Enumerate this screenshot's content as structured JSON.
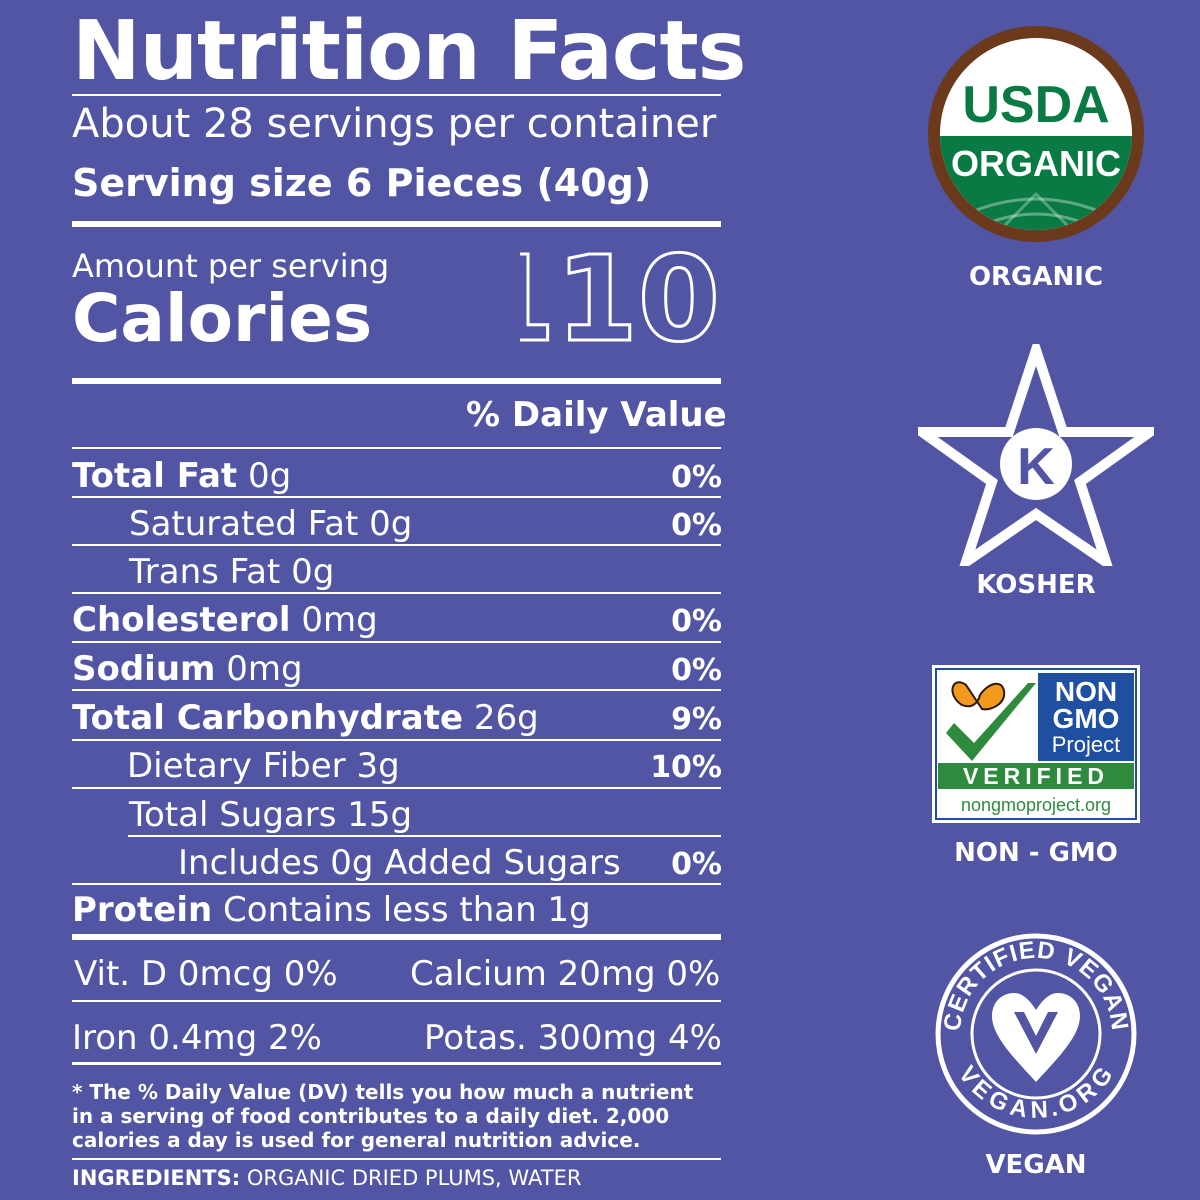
{
  "title": "Nutrition Facts",
  "servings_per_container": "About 28 servings per container",
  "serving_size": "Serving size 6 Pieces (40g)",
  "amount_per_serving": "Amount per serving",
  "calories_label": "Calories",
  "calories_value": "110",
  "daily_value_header": "% Daily Value",
  "nutrients": [
    {
      "name": "Total Fat",
      "amount": "0g",
      "dv": "0%"
    },
    {
      "name": "Saturated Fat",
      "amount": "0g",
      "dv": "0%"
    },
    {
      "name": "Trans Fat",
      "amount": "0g",
      "dv": ""
    },
    {
      "name": "Cholesterol",
      "amount": "0mg",
      "dv": "0%"
    },
    {
      "name": "Sodium",
      "amount": "0mg",
      "dv": "0%"
    },
    {
      "name": "Total Carbonhydrate",
      "amount": "26g",
      "dv": "9%"
    },
    {
      "name": "Dietary Fiber",
      "amount": "3g",
      "dv": "10%"
    },
    {
      "name": "Total Sugars",
      "amount": "15g",
      "dv": ""
    },
    {
      "name": "Includes 0g Added Sugars",
      "amount": "",
      "dv": "0%"
    },
    {
      "name": "Protein",
      "amount": "Contains less than 1g",
      "dv": ""
    }
  ],
  "vitamins": {
    "vit_d": "Vit. D 0mcg 0%",
    "calcium": "Calcium 20mg 0%",
    "iron": "Iron 0.4mg 2%",
    "potassium": "Potas. 300mg 4%"
  },
  "footnote": "* The % Daily Value (DV) tells you how much a nutrient in a serving of food contributes to a daily diet. 2,000 calories a day is used for general nutrition advice.",
  "ingredients_label": "INGREDIENTS:",
  "ingredients": "ORGANIC DRIED PLUMS, WATER",
  "badges": {
    "usda_top": "USDA",
    "usda_bottom": "ORGANIC",
    "organic_label": "ORGANIC",
    "kosher_letter": "K",
    "kosher_label": "KOSHER",
    "nongmo_line1": "NON",
    "nongmo_line2": "GMO",
    "nongmo_line3": "Project",
    "nongmo_verified": "VERIFIED",
    "nongmo_url": "nongmoproject.org",
    "nongmo_label": "NON - GMO",
    "vegan_ring_top": "CERTIFIED VEGAN",
    "vegan_ring_bottom": "VEGAN.ORG",
    "vegan_label": "VEGAN"
  },
  "colors": {
    "background": "#5155a3",
    "usda_green": "#0a7a45",
    "usda_brown": "#6b3a1c",
    "nongmo_blue": "#1f4fa0",
    "nongmo_green": "#2e8b3e",
    "butterfly_orange": "#f39a1e"
  }
}
